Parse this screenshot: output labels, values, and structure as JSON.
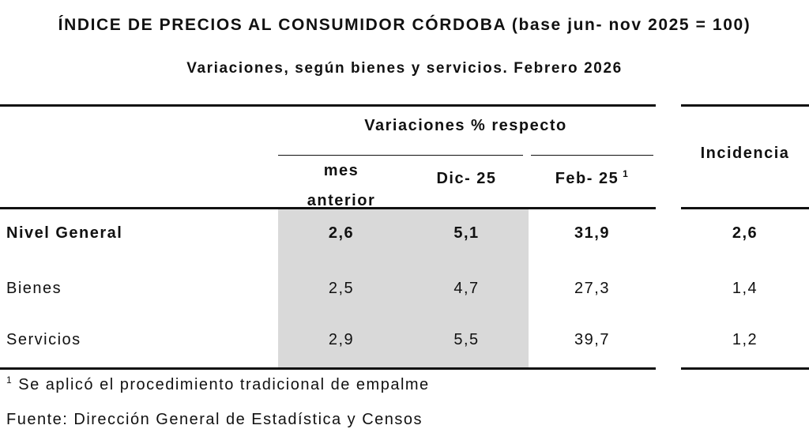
{
  "title": "ÍNDICE DE PRECIOS AL CONSUMIDOR CÓRDOBA (base jun- nov 2025 = 100)",
  "subtitle": "Variaciones, según bienes y servicios. Febrero 2026",
  "table": {
    "group_header": "Variaciones % respecto",
    "incidencia_header": "Incidencia",
    "columns": [
      {
        "label_line1": "mes",
        "label_line2": "anterior"
      },
      {
        "label": "Dic- 25"
      },
      {
        "label": "Feb- 25",
        "sup": "1"
      }
    ],
    "rows": [
      {
        "label": "Nivel General",
        "values": [
          "2,6",
          "5,1",
          "31,9"
        ],
        "incidencia": "2,6",
        "bold": true
      },
      {
        "label": "Bienes",
        "values": [
          "2,5",
          "4,7",
          "27,3"
        ],
        "incidencia": "1,4",
        "bold": false
      },
      {
        "label": "Servicios",
        "values": [
          "2,9",
          "5,5",
          "39,7"
        ],
        "incidencia": "1,2",
        "bold": false
      }
    ]
  },
  "footnote": {
    "sup": "1",
    "text": "Se aplicó el procedimiento tradicional de empalme"
  },
  "source": "Fuente: Dirección General de Estadística y Censos",
  "colors": {
    "shade": "#d9d9d9",
    "rule": "#111111"
  }
}
